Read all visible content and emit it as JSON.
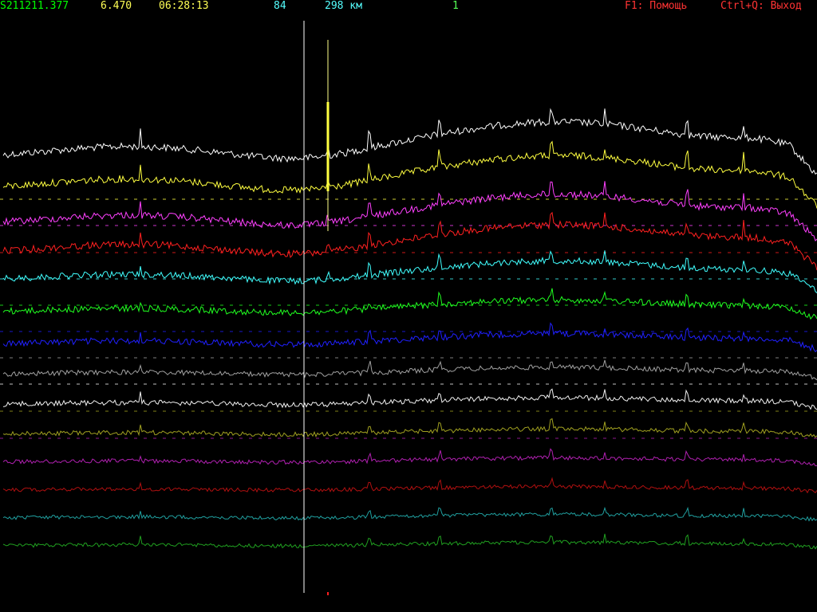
{
  "status_bar": {
    "file_name": "S211211.377",
    "value": "6.470",
    "time": "06:28:13",
    "count": "84",
    "distance": "298 км",
    "channel": "1",
    "help_hint": "F1: Помощь",
    "exit_hint": "Ctrl+Q: Выход"
  },
  "colors": {
    "background": "#000000",
    "file_name": "#00ff00",
    "value": "#ffff55",
    "time": "#ffff55",
    "count": "#55ffff",
    "distance": "#55ffff",
    "channel": "#55ff55",
    "hints": "#ff3333",
    "cursor": "#ffffff",
    "marker": "#ffff88"
  },
  "traces": [
    {
      "name": "trace-1",
      "color": "#ffffff"
    },
    {
      "name": "trace-2",
      "color": "#ffff40"
    },
    {
      "name": "trace-3",
      "color": "#ff40ff"
    },
    {
      "name": "trace-4",
      "color": "#ff2020"
    },
    {
      "name": "trace-5",
      "color": "#40ffff"
    },
    {
      "name": "trace-6",
      "color": "#20ff20"
    },
    {
      "name": "trace-7",
      "color": "#2020ff"
    },
    {
      "name": "trace-8",
      "color": "#a0a0a0"
    },
    {
      "name": "trace-9",
      "color": "#f0f0f0"
    },
    {
      "name": "trace-10",
      "color": "#a0a020"
    },
    {
      "name": "trace-11",
      "color": "#b020b0"
    },
    {
      "name": "trace-12",
      "color": "#b01010"
    },
    {
      "name": "trace-13",
      "color": "#20a0a0"
    },
    {
      "name": "trace-14",
      "color": "#20a020"
    }
  ]
}
